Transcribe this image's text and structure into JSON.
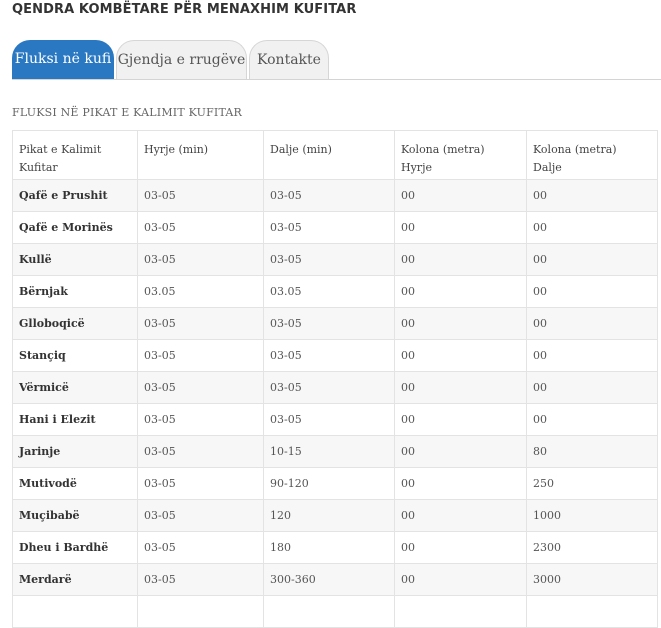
{
  "page": {
    "title": "QENDRA KOMBËTARE PËR MENAXHIM KUFITAR"
  },
  "tabs": [
    {
      "label": "Fluksi në kufi"
    },
    {
      "label": "Gjendja e rrugëve"
    },
    {
      "label": "Kontakte"
    }
  ],
  "table": {
    "caption": "FLUKSI NË PIKAT E KALIMIT KUFITAR",
    "headers": [
      {
        "line1": "Pikat e Kalimit",
        "line2": "Kufitar"
      },
      {
        "line1": "Hyrje (min)",
        "line2": ""
      },
      {
        "line1": "Dalje (min)",
        "line2": ""
      },
      {
        "line1": "Kolona (metra)",
        "line2": "Hyrje"
      },
      {
        "line1": "Kolona (metra)",
        "line2": "Dalje"
      }
    ],
    "rows": [
      [
        "Qafë e Prushit",
        "03-05",
        "03-05",
        "00",
        "00"
      ],
      [
        "Qafë e Morinës",
        "03-05",
        "03-05",
        "00",
        "00"
      ],
      [
        "Kullë",
        "03-05",
        "03-05",
        "00",
        "00"
      ],
      [
        "Bërnjak",
        "03.05",
        "03.05",
        "00",
        "00"
      ],
      [
        "Glloboqicë",
        "03-05",
        "03-05",
        "00",
        "00"
      ],
      [
        "Stançiq",
        "03-05",
        "03-05",
        "00",
        "00"
      ],
      [
        "Vërmicë",
        "03-05",
        "03-05",
        "00",
        "00"
      ],
      [
        "Hani i Elezit",
        "03-05",
        "03-05",
        "00",
        "00"
      ],
      [
        "Jarinje",
        "03-05",
        "10-15",
        "00",
        "80"
      ],
      [
        "Mutivodë",
        "03-05",
        "90-120",
        "00",
        "250"
      ],
      [
        "Muçibabë",
        "03-05",
        "120",
        "00",
        "1000"
      ],
      [
        "Dheu i Bardhë",
        "03-05",
        "180",
        "00",
        "2300"
      ],
      [
        "Merdarë",
        "03-05",
        "300-360",
        "00",
        "3000"
      ],
      [
        "",
        "",
        "",
        "",
        ""
      ]
    ]
  }
}
